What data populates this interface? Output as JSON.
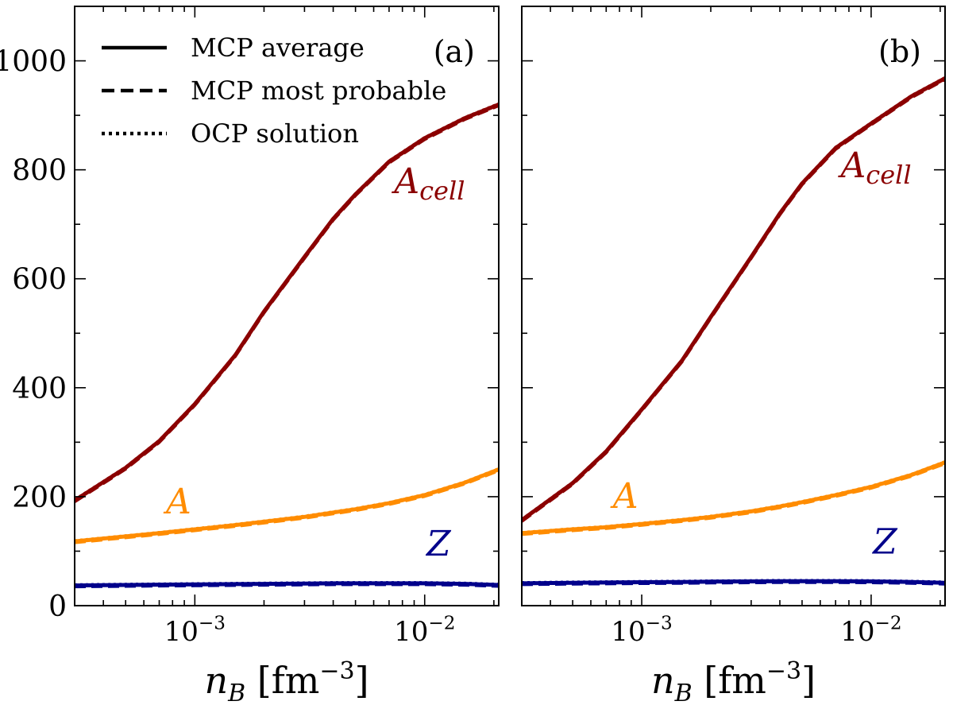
{
  "chart_data": [
    {
      "type": "line",
      "panel_label": "(a)",
      "xscale": "log",
      "xlim": [
        0.0003,
        0.021
      ],
      "ylim": [
        0,
        1100
      ],
      "xlabel": "n_B [fm^-3]",
      "ylabel": "",
      "yticks": [
        0,
        200,
        400,
        600,
        800,
        1000
      ],
      "yticklabels": [
        "0",
        "200",
        "400",
        "600",
        "800",
        "1000"
      ],
      "xticks": [
        0.001,
        0.01
      ],
      "xticklabels": [
        "10^-3",
        "10^-2"
      ],
      "legend": {
        "placement": "top-left",
        "entries": [
          {
            "label": "MCP average",
            "style": "solid"
          },
          {
            "label": "MCP most probable",
            "style": "dashed"
          },
          {
            "label": "OCP solution",
            "style": "dotted"
          }
        ]
      },
      "series": [
        {
          "name": "A_cell",
          "color": "#8b0000",
          "x": [
            0.0003,
            0.0005,
            0.0007,
            0.001,
            0.0015,
            0.002,
            0.003,
            0.004,
            0.005,
            0.007,
            0.01,
            0.015,
            0.021
          ],
          "y": [
            193,
            253,
            302,
            370,
            460,
            540,
            640,
            710,
            755,
            815,
            858,
            895,
            920
          ]
        },
        {
          "name": "A",
          "color": "#ff8c00",
          "x": [
            0.0003,
            0.0005,
            0.0007,
            0.001,
            0.0015,
            0.002,
            0.003,
            0.004,
            0.005,
            0.007,
            0.01,
            0.015,
            0.021
          ],
          "y": [
            118,
            127,
            133,
            140,
            148,
            154,
            163,
            171,
            177,
            188,
            203,
            226,
            250
          ]
        },
        {
          "name": "Z",
          "color": "#00008b",
          "x": [
            0.0003,
            0.0005,
            0.0007,
            0.001,
            0.0015,
            0.002,
            0.003,
            0.004,
            0.005,
            0.007,
            0.01,
            0.015,
            0.021
          ],
          "y": [
            37,
            38,
            38.5,
            39,
            39.5,
            40,
            40.5,
            41,
            41,
            41,
            41,
            40,
            38
          ]
        }
      ],
      "annotations": [
        {
          "text": "A_cell",
          "series": "A_cell"
        },
        {
          "text": "A",
          "series": "A"
        },
        {
          "text": "Z",
          "series": "Z"
        }
      ]
    },
    {
      "type": "line",
      "panel_label": "(b)",
      "xscale": "log",
      "xlim": [
        0.0003,
        0.021
      ],
      "ylim": [
        0,
        1100
      ],
      "xlabel": "n_B [fm^-3]",
      "ylabel": "",
      "yticks": [
        0,
        200,
        400,
        600,
        800,
        1000
      ],
      "yticklabels": [],
      "xticks": [
        0.001,
        0.01
      ],
      "xticklabels": [
        "10^-3",
        "10^-2"
      ],
      "series": [
        {
          "name": "A_cell",
          "color": "#8b0000",
          "x": [
            0.0003,
            0.0005,
            0.0007,
            0.001,
            0.0015,
            0.002,
            0.003,
            0.004,
            0.005,
            0.007,
            0.01,
            0.015,
            0.021
          ],
          "y": [
            157,
            225,
            283,
            360,
            450,
            530,
            640,
            720,
            775,
            840,
            885,
            935,
            968
          ]
        },
        {
          "name": "A",
          "color": "#ff8c00",
          "x": [
            0.0003,
            0.0005,
            0.0007,
            0.001,
            0.0015,
            0.002,
            0.003,
            0.004,
            0.005,
            0.007,
            0.01,
            0.015,
            0.021
          ],
          "y": [
            133,
            140,
            144,
            150,
            157,
            163,
            173,
            182,
            190,
            203,
            218,
            240,
            263
          ]
        },
        {
          "name": "Z",
          "color": "#00008b",
          "x": [
            0.0003,
            0.0005,
            0.0007,
            0.001,
            0.0015,
            0.002,
            0.003,
            0.004,
            0.005,
            0.007,
            0.01,
            0.015,
            0.021
          ],
          "y": [
            41,
            42,
            42.5,
            43,
            43.5,
            44,
            44.5,
            45,
            45,
            45,
            44.5,
            43.5,
            42
          ]
        }
      ],
      "annotations": [
        {
          "text": "A_cell",
          "series": "A_cell"
        },
        {
          "text": "A",
          "series": "A"
        },
        {
          "text": "Z",
          "series": "Z"
        }
      ]
    }
  ]
}
